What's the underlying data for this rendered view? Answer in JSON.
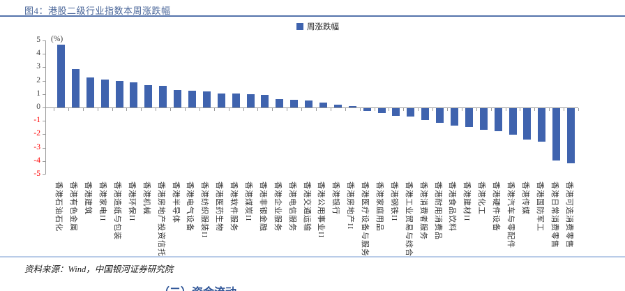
{
  "header": {
    "figure_title": "图4：港股二级行业指数本周涨跌幅"
  },
  "chart_data": {
    "type": "bar",
    "title": "图4：港股二级行业指数本周涨跌幅",
    "unit_label": "(%)",
    "legend": [
      {
        "label": "周涨跌幅",
        "color": "#3f63ae"
      }
    ],
    "legend_position": "top-center",
    "grid": false,
    "ylim": [
      -5,
      5
    ],
    "yticks": [
      5,
      4,
      3,
      2,
      1,
      0,
      -1,
      -2,
      -3,
      -4,
      -5
    ],
    "bar_color": "#3f63ae",
    "negative_tick_color": "#ff0000",
    "categories": [
      "香港石油石化",
      "香港有色金属",
      "香港建筑",
      "香港家电II",
      "香港造纸与包装",
      "香港环保II",
      "香港机械",
      "香港房地产投资信托",
      "香港半导体",
      "香港电气设备",
      "香港纺织服装II",
      "香港医药生物",
      "香港软件服务",
      "香港煤炭II",
      "香港非银金融",
      "香港企业服务",
      "香港电信服务",
      "香港交通运输",
      "香港公用事业II",
      "香港银行",
      "香港房地产II",
      "香港医疗设备与服务",
      "香港家庭用品",
      "香港钢铁II",
      "香港工业贸易与综合",
      "香港消费者服务",
      "香港耐用消费品",
      "香港食品饮料",
      "香港建材II",
      "香港化工",
      "香港硬件设备",
      "香港汽车与零配件",
      "香港传媒",
      "香港国防军工",
      "香港日常消费零售",
      "香港可选消费零售"
    ],
    "values": [
      4.7,
      2.85,
      2.25,
      2.1,
      2.0,
      1.85,
      1.65,
      1.6,
      1.3,
      1.25,
      1.2,
      1.05,
      1.05,
      1.0,
      0.95,
      0.65,
      0.55,
      0.5,
      0.35,
      0.2,
      0.1,
      -0.2,
      -0.35,
      -0.55,
      -0.65,
      -0.9,
      -1.1,
      -1.3,
      -1.4,
      -1.6,
      -1.7,
      -2.0,
      -2.35,
      -2.5,
      -3.9,
      -4.1
    ]
  },
  "footer": {
    "source": "资料来源：Wind，中国银河证券研究院",
    "next_section_heading": "（二）资金流动"
  }
}
